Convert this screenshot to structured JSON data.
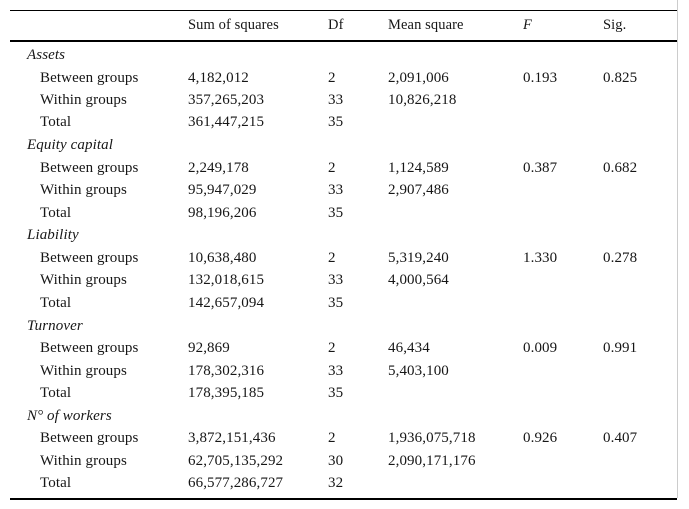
{
  "table": {
    "columns": [
      "",
      "Sum of squares",
      "Df",
      "Mean square",
      "F",
      "Sig."
    ],
    "sections": [
      {
        "title": "Assets",
        "rows": [
          {
            "label": "Between groups",
            "ss": "4,182,012",
            "df": "2",
            "ms": "2,091,006",
            "f": "0.193",
            "sig": "0.825"
          },
          {
            "label": "Within groups",
            "ss": "357,265,203",
            "df": "33",
            "ms": "10,826,218",
            "f": "",
            "sig": ""
          },
          {
            "label": "Total",
            "ss": "361,447,215",
            "df": "35",
            "ms": "",
            "f": "",
            "sig": ""
          }
        ]
      },
      {
        "title": "Equity capital",
        "rows": [
          {
            "label": "Between groups",
            "ss": "2,249,178",
            "df": "2",
            "ms": "1,124,589",
            "f": "0.387",
            "sig": "0.682"
          },
          {
            "label": "Within groups",
            "ss": "95,947,029",
            "df": "33",
            "ms": "2,907,486",
            "f": "",
            "sig": ""
          },
          {
            "label": "Total",
            "ss": "98,196,206",
            "df": "35",
            "ms": "",
            "f": "",
            "sig": ""
          }
        ]
      },
      {
        "title": "Liability",
        "rows": [
          {
            "label": "Between groups",
            "ss": "10,638,480",
            "df": "2",
            "ms": "5,319,240",
            "f": "1.330",
            "sig": "0.278"
          },
          {
            "label": "Within groups",
            "ss": "132,018,615",
            "df": "33",
            "ms": "4,000,564",
            "f": "",
            "sig": ""
          },
          {
            "label": "Total",
            "ss": "142,657,094",
            "df": "35",
            "ms": "",
            "f": "",
            "sig": ""
          }
        ]
      },
      {
        "title": "Turnover",
        "rows": [
          {
            "label": "Between groups",
            "ss": "92,869",
            "df": "2",
            "ms": "46,434",
            "f": "0.009",
            "sig": "0.991"
          },
          {
            "label": "Within groups",
            "ss": "178,302,316",
            "df": "33",
            "ms": "5,403,100",
            "f": "",
            "sig": ""
          },
          {
            "label": "Total",
            "ss": "178,395,185",
            "df": "35",
            "ms": "",
            "f": "",
            "sig": ""
          }
        ]
      },
      {
        "title": "N° of workers",
        "rows": [
          {
            "label": "Between groups",
            "ss": "3,872,151,436",
            "df": "2",
            "ms": "1,936,075,718",
            "f": "0.926",
            "sig": "0.407"
          },
          {
            "label": "Within groups",
            "ss": "62,705,135,292",
            "df": "30",
            "ms": "2,090,171,176",
            "f": "",
            "sig": ""
          },
          {
            "label": "Total",
            "ss": "66,577,286,727",
            "df": "32",
            "ms": "",
            "f": "",
            "sig": ""
          }
        ]
      }
    ]
  }
}
